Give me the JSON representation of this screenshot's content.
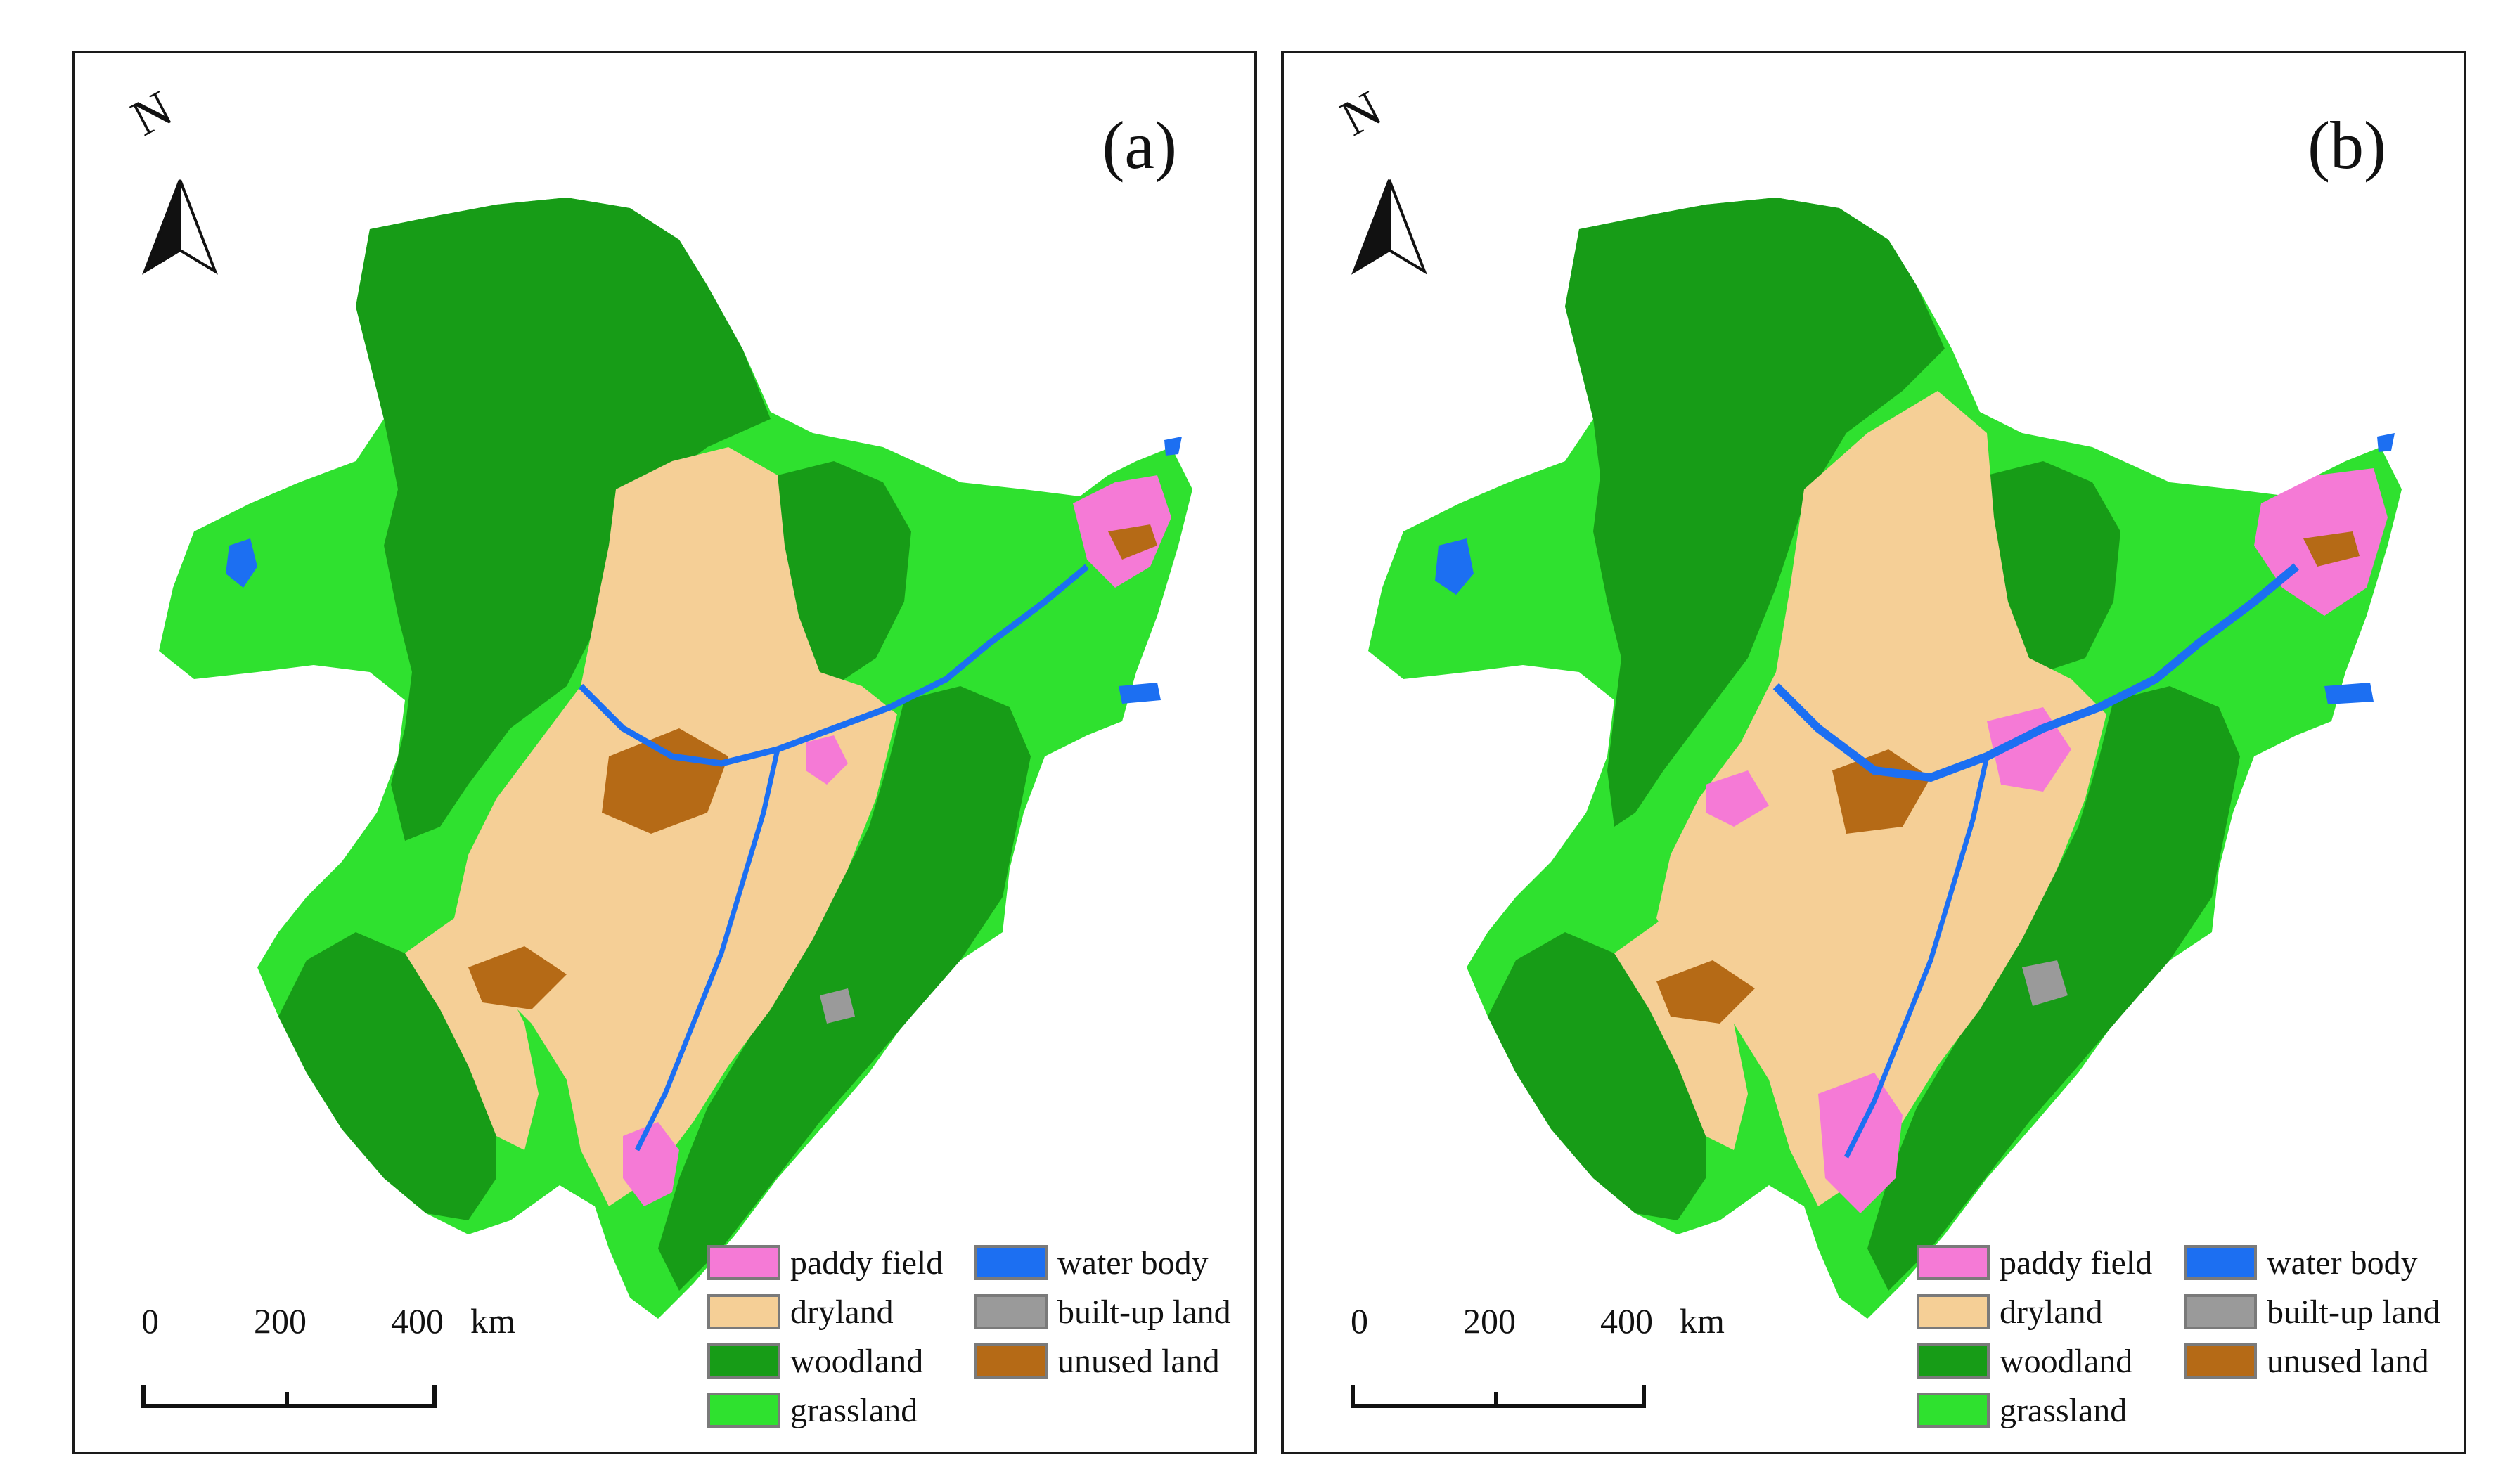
{
  "panels": [
    {
      "label": "(a)"
    },
    {
      "label": "(b)"
    }
  ],
  "north_arrow": {
    "letter": "N",
    "icon": "north-arrow-icon"
  },
  "scale_bar": {
    "ticks": [
      "0",
      "200",
      "400"
    ],
    "unit": "km"
  },
  "legend": {
    "items": [
      {
        "label": "paddy field",
        "color": "#f57ad6"
      },
      {
        "label": "dryland",
        "color": "#f5cf96"
      },
      {
        "label": "woodland",
        "color": "#179c17"
      },
      {
        "label": "grassland",
        "color": "#2fe12f"
      },
      {
        "label": "water body",
        "color": "#1c6ff2"
      },
      {
        "label": "built-up land",
        "color": "#9a9a9a"
      },
      {
        "label": "unused land",
        "color": "#b56a16"
      }
    ]
  },
  "colors": {
    "paddy_field": "#f57ad6",
    "dryland": "#f5cf96",
    "woodland": "#179c17",
    "grassland": "#2fe12f",
    "water_body": "#1c6ff2",
    "built_up_land": "#9a9a9a",
    "unused_land": "#b56a16"
  }
}
